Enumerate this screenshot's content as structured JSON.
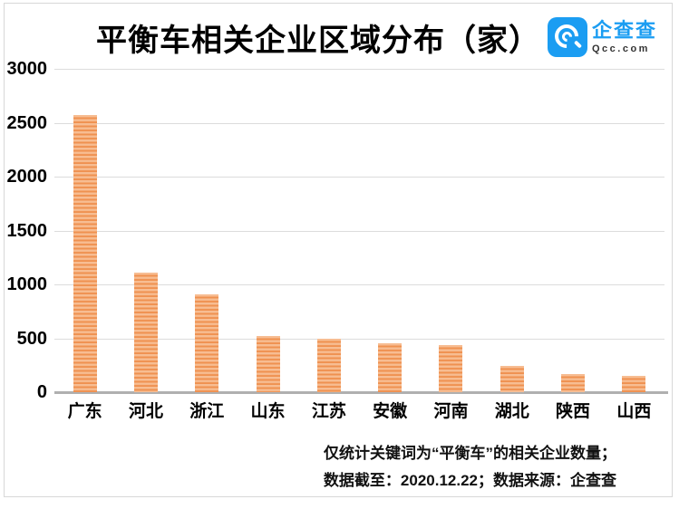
{
  "header": {
    "title": "平衡车相关企业区域分布（家）"
  },
  "logo": {
    "name": "企查查",
    "domain": "Qcc.com",
    "brand_color": "#1b9df2",
    "icon": "qcc-spiral-c-icon"
  },
  "chart_data": {
    "type": "bar",
    "title": "平衡车相关企业区域分布（家）",
    "categories": [
      "广东",
      "河北",
      "浙江",
      "山东",
      "江苏",
      "安徽",
      "河南",
      "湖北",
      "陕西",
      "山西"
    ],
    "values": [
      2570,
      1110,
      910,
      520,
      500,
      450,
      440,
      240,
      165,
      155
    ],
    "xlabel": "",
    "ylabel": "",
    "ylim": [
      0,
      3000
    ],
    "yticks": [
      0,
      500,
      1000,
      1500,
      2000,
      2500,
      3000
    ],
    "grid": true,
    "legend": "none",
    "bar_color": "#ef9150",
    "bar_stripe_color": "#f7bd92",
    "gridline_color": "#dcdcdc",
    "axis_color": "#b0b0b0"
  },
  "footer": {
    "line1": "仅统计关键词为“平衡车”的相关企业数量；",
    "line2": "数据截至：2020.12.22；数据来源：企查查"
  }
}
